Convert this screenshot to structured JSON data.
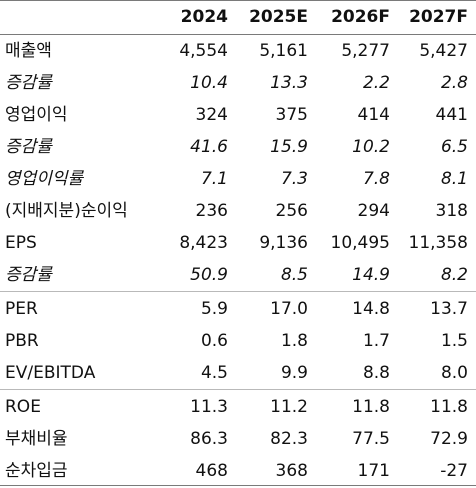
{
  "columns": [
    "2024",
    "2025E",
    "2026F",
    "2027F"
  ],
  "rows": [
    {
      "label": "매출액",
      "values": [
        "4,554",
        "5,161",
        "5,277",
        "5,427"
      ],
      "italic": false
    },
    {
      "label": "증감률",
      "values": [
        "10.4",
        "13.3",
        "2.2",
        "2.8"
      ],
      "italic": true
    },
    {
      "label": "영업이익",
      "values": [
        "324",
        "375",
        "414",
        "441"
      ],
      "italic": false
    },
    {
      "label": "증감률",
      "values": [
        "41.6",
        "15.9",
        "10.2",
        "6.5"
      ],
      "italic": true
    },
    {
      "label": "영업이익률",
      "values": [
        "7.1",
        "7.3",
        "7.8",
        "8.1"
      ],
      "italic": true
    },
    {
      "label": "(지배지분)순이익",
      "values": [
        "236",
        "256",
        "294",
        "318"
      ],
      "italic": false
    },
    {
      "label": "EPS",
      "values": [
        "8,423",
        "9,136",
        "10,495",
        "11,358"
      ],
      "italic": false
    },
    {
      "label": "증감률",
      "values": [
        "50.9",
        "8.5",
        "14.9",
        "8.2"
      ],
      "italic": true
    },
    {
      "label": "PER",
      "values": [
        "5.9",
        "17.0",
        "14.8",
        "13.7"
      ],
      "italic": false
    },
    {
      "label": "PBR",
      "values": [
        "0.6",
        "1.8",
        "1.7",
        "1.5"
      ],
      "italic": false
    },
    {
      "label": "EV/EBITDA",
      "values": [
        "4.5",
        "9.9",
        "8.8",
        "8.0"
      ],
      "italic": false
    },
    {
      "label": "ROE",
      "values": [
        "11.3",
        "11.2",
        "11.8",
        "11.8"
      ],
      "italic": false
    },
    {
      "label": "부채비율",
      "values": [
        "86.3",
        "82.3",
        "77.5",
        "72.9"
      ],
      "italic": false
    },
    {
      "label": "순차입금",
      "values": [
        "468",
        "368",
        "171",
        "-27"
      ],
      "italic": false
    }
  ]
}
